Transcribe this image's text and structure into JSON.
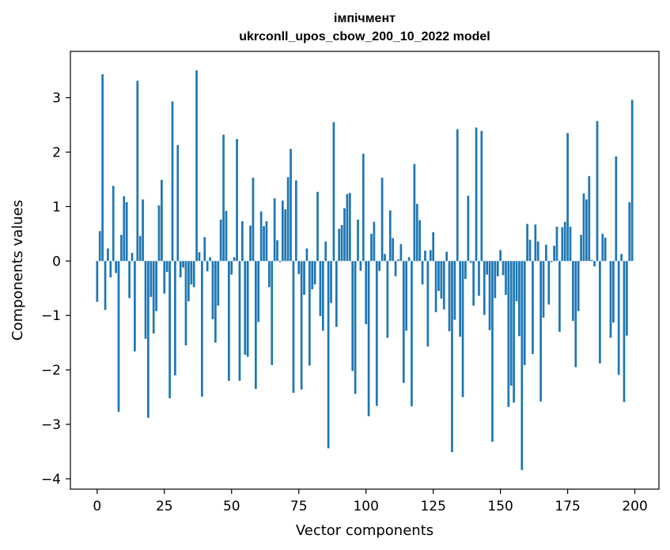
{
  "chart_data": {
    "type": "bar",
    "title": "імпічмент",
    "subtitle": "ukrconll_upos_cbow_200_10_2022 model",
    "xlabel": "Vector components",
    "ylabel": "Components values",
    "xlim": [
      -9.95,
      208.95
    ],
    "ylim": [
      -4.19,
      3.85
    ],
    "xticks": [
      0,
      25,
      50,
      75,
      100,
      125,
      150,
      175,
      200
    ],
    "yticks": [
      -4,
      -3,
      -2,
      -1,
      0,
      1,
      2,
      3
    ],
    "xtick_labels": [
      "0",
      "25",
      "50",
      "75",
      "100",
      "125",
      "150",
      "175",
      "200"
    ],
    "ytick_labels": [
      "−4",
      "−3",
      "−2",
      "−1",
      "0",
      "1",
      "2",
      "3"
    ],
    "grid": false,
    "bar_color": "#1f77b4",
    "x": [
      0,
      1,
      2,
      3,
      4,
      5,
      6,
      7,
      8,
      9,
      10,
      11,
      12,
      13,
      14,
      15,
      16,
      17,
      18,
      19,
      20,
      21,
      22,
      23,
      24,
      25,
      26,
      27,
      28,
      29,
      30,
      31,
      32,
      33,
      34,
      35,
      36,
      37,
      38,
      39,
      40,
      41,
      42,
      43,
      44,
      45,
      46,
      47,
      48,
      49,
      50,
      51,
      52,
      53,
      54,
      55,
      56,
      57,
      58,
      59,
      60,
      61,
      62,
      63,
      64,
      65,
      66,
      67,
      68,
      69,
      70,
      71,
      72,
      73,
      74,
      75,
      76,
      77,
      78,
      79,
      80,
      81,
      82,
      83,
      84,
      85,
      86,
      87,
      88,
      89,
      90,
      91,
      92,
      93,
      94,
      95,
      96,
      97,
      98,
      99,
      100,
      101,
      102,
      103,
      104,
      105,
      106,
      107,
      108,
      109,
      110,
      111,
      112,
      113,
      114,
      115,
      116,
      117,
      118,
      119,
      120,
      121,
      122,
      123,
      124,
      125,
      126,
      127,
      128,
      129,
      130,
      131,
      132,
      133,
      134,
      135,
      136,
      137,
      138,
      139,
      140,
      141,
      142,
      143,
      144,
      145,
      146,
      147,
      148,
      149,
      150,
      151,
      152,
      153,
      154,
      155,
      156,
      157,
      158,
      159,
      160,
      161,
      162,
      163,
      164,
      165,
      166,
      167,
      168,
      169,
      170,
      171,
      172,
      173,
      174,
      175,
      176,
      177,
      178,
      179,
      180,
      181,
      182,
      183,
      184,
      185,
      186,
      187,
      188,
      189,
      190,
      191,
      192,
      193,
      194,
      195,
      196,
      197,
      198,
      199
    ],
    "values": [
      -0.75,
      0.55,
      3.43,
      -0.9,
      0.23,
      -0.3,
      1.38,
      -0.22,
      -2.77,
      0.48,
      1.19,
      1.08,
      -0.68,
      0.15,
      -1.66,
      3.31,
      0.46,
      1.13,
      -1.43,
      -2.88,
      -0.66,
      -1.33,
      -0.92,
      1.02,
      1.49,
      -0.6,
      -0.2,
      -2.52,
      2.93,
      -2.1,
      2.13,
      -0.3,
      -0.12,
      -1.55,
      -0.74,
      -0.43,
      -0.48,
      3.5,
      0.16,
      -2.49,
      0.44,
      -0.19,
      0.07,
      -1.07,
      -1.5,
      -0.82,
      0.76,
      2.32,
      0.92,
      -2.2,
      -0.25,
      0.07,
      2.24,
      -2.2,
      0.73,
      -1.72,
      -1.76,
      0.65,
      1.53,
      -2.35,
      -1.12,
      0.91,
      0.64,
      0.73,
      -0.48,
      -1.91,
      1.15,
      0.38,
      -0.02,
      1.11,
      0.95,
      1.54,
      2.06,
      -2.42,
      1.48,
      -0.24,
      -2.36,
      -0.62,
      0.23,
      -1.92,
      -0.52,
      -0.43,
      1.27,
      -1.01,
      -1.28,
      0.36,
      -3.44,
      -0.77,
      2.55,
      -1.21,
      0.59,
      0.66,
      0.97,
      1.23,
      1.25,
      -2.02,
      -2.44,
      0.76,
      -0.18,
      1.97,
      -1.16,
      -2.85,
      0.5,
      0.72,
      -2.66,
      -0.18,
      1.53,
      0.13,
      -1.41,
      0.93,
      0.42,
      -0.28,
      0.03,
      0.31,
      -2.24,
      -1.28,
      0.07,
      -2.67,
      1.78,
      1.05,
      0.75,
      -0.43,
      0.19,
      -1.57,
      0.2,
      0.53,
      -0.94,
      -0.55,
      -0.69,
      -0.89,
      0.17,
      -1.29,
      -3.51,
      -1.08,
      2.42,
      -1.39,
      -2.5,
      -0.33,
      1.2,
      -0.03,
      -0.82,
      2.45,
      -0.64,
      2.39,
      -0.99,
      -0.25,
      -1.27,
      -3.32,
      -0.68,
      -0.28,
      0.2,
      -0.26,
      -0.62,
      -2.68,
      -2.29,
      -2.6,
      -0.74,
      -1.38,
      -3.84,
      -1.91,
      0.68,
      0.39,
      -1.71,
      0.67,
      0.36,
      -2.58,
      -1.04,
      0.3,
      -0.8,
      -0.02,
      0.28,
      0.63,
      -1.3,
      0.62,
      0.72,
      2.35,
      0.63,
      -1.1,
      -1.95,
      -0.92,
      0.48,
      1.24,
      1.13,
      1.56,
      0.02,
      -0.1,
      2.57,
      -1.88,
      0.5,
      0.43,
      0,
      -1.41,
      -1.13,
      1.92,
      -2.09,
      0.13,
      -2.59,
      -1.37,
      1.08,
      2.96
    ]
  }
}
